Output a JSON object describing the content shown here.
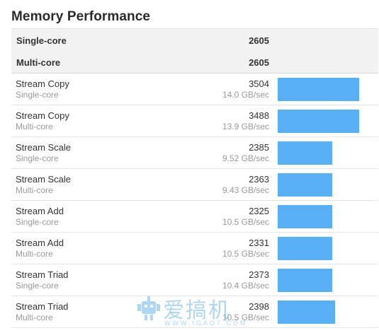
{
  "title": "Memory Performance",
  "summary": [
    {
      "label": "Single-core",
      "score": "2605"
    },
    {
      "label": "Multi-core",
      "score": "2605"
    }
  ],
  "benchmarks": [
    {
      "name": "Stream Copy",
      "mode": "Single-core",
      "score": "3504",
      "rate": "14.0 GB/sec",
      "bar_fraction": 0.81
    },
    {
      "name": "Stream Copy",
      "mode": "Multi-core",
      "score": "3488",
      "rate": "13.9 GB/sec",
      "bar_fraction": 0.81
    },
    {
      "name": "Stream Scale",
      "mode": "Single-core",
      "score": "2385",
      "rate": "9.52 GB/sec",
      "bar_fraction": 0.54
    },
    {
      "name": "Stream Scale",
      "mode": "Multi-core",
      "score": "2363",
      "rate": "9.43 GB/sec",
      "bar_fraction": 0.54
    },
    {
      "name": "Stream Add",
      "mode": "Single-core",
      "score": "2325",
      "rate": "10.5 GB/sec",
      "bar_fraction": 0.54
    },
    {
      "name": "Stream Add",
      "mode": "Multi-core",
      "score": "2331",
      "rate": "10.5 GB/sec",
      "bar_fraction": 0.54
    },
    {
      "name": "Stream Triad",
      "mode": "Single-core",
      "score": "2373",
      "rate": "10.4 GB/sec",
      "bar_fraction": 0.54
    },
    {
      "name": "Stream Triad",
      "mode": "Multi-core",
      "score": "2398",
      "rate": "10.5 GB/sec",
      "bar_fraction": 0.57
    }
  ],
  "colors": {
    "bar": "#5ab0f7",
    "summary_bg": "#f2f2f2"
  },
  "watermark": {
    "text": "爱搞机",
    "url": "WWW.IGAO7.COM",
    "icon": "robot-logo-icon"
  }
}
